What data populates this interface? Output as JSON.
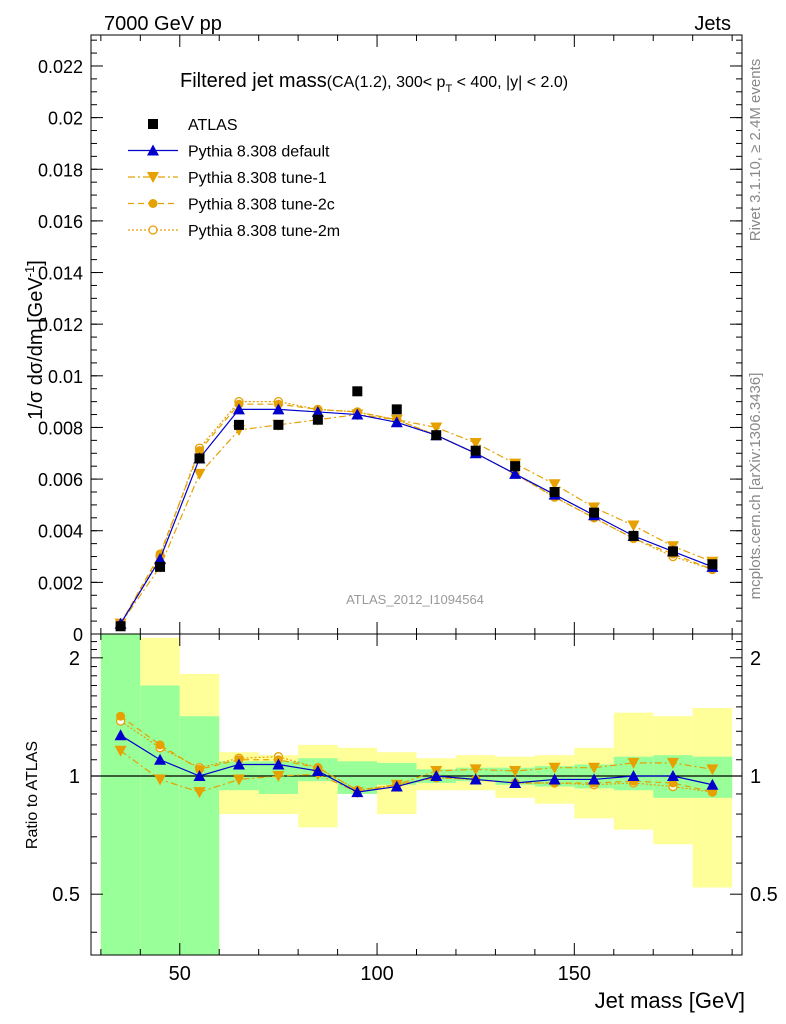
{
  "header": {
    "left": "7000 GeV pp",
    "right": "Jets"
  },
  "title": {
    "main": "Filtered jet mass",
    "sub": "(CA(1.2), 300< p",
    "sub_pt": "T",
    "sub_end": " < 400, |y| < 2.0)"
  },
  "side_labels": {
    "rivet": "Rivet 3.1.10, ≥ 2.4M events",
    "mcplots": "mcplots.cern.ch [arXiv:1306.3436]"
  },
  "watermark": "ATLAS_2012_I1094564",
  "colors": {
    "atlas": "#000000",
    "default": "#0000cc",
    "tune": "#e6a000",
    "band_inner": "#99ff99",
    "band_outer": "#ffff99"
  },
  "chart_data": [
    {
      "type": "line",
      "panel": "main",
      "ylabel": "1/σ dσ/dm [GeV",
      "ylabel_sup": "-1",
      "ylabel_end": "]",
      "xlim": [
        27.5,
        192.5
      ],
      "ylim": [
        0,
        0.0232
      ],
      "yticks": [
        0,
        0.002,
        0.004,
        0.006,
        0.008,
        0.01,
        0.012,
        0.014,
        0.016,
        0.018,
        0.02,
        0.022
      ],
      "ytick_labels": [
        "0",
        "0.002",
        "0.004",
        "0.006",
        "0.008",
        "0.01",
        "0.012",
        "0.014",
        "0.016",
        "0.018",
        "0.02",
        "0.022"
      ],
      "x": [
        35,
        45,
        55,
        65,
        75,
        85,
        95,
        105,
        115,
        125,
        135,
        145,
        155,
        165,
        175,
        185
      ],
      "series": [
        {
          "name": "ATLAS",
          "style": "data",
          "values": [
            0.0003,
            0.0026,
            0.0068,
            0.0081,
            0.0081,
            0.0083,
            0.0094,
            0.0087,
            0.0077,
            0.0071,
            0.0065,
            0.0055,
            0.0047,
            0.0038,
            0.0032,
            0.0027
          ]
        },
        {
          "name": "Pythia 8.308 default",
          "style": "default",
          "values": [
            0.0004,
            0.0029,
            0.0068,
            0.0087,
            0.0087,
            0.0086,
            0.0085,
            0.0082,
            0.0077,
            0.007,
            0.0062,
            0.0054,
            0.0046,
            0.0038,
            0.0032,
            0.0026
          ]
        },
        {
          "name": "Pythia 8.308 tune-1",
          "style": "tune1",
          "values": [
            0.0004,
            0.0026,
            0.0062,
            0.0079,
            0.0081,
            0.0083,
            0.0085,
            0.0083,
            0.008,
            0.0074,
            0.0066,
            0.0058,
            0.0049,
            0.0042,
            0.0034,
            0.0028
          ]
        },
        {
          "name": "Pythia 8.308 tune-2c",
          "style": "tune2c",
          "values": [
            0.0004,
            0.0031,
            0.0071,
            0.0089,
            0.0089,
            0.0087,
            0.0086,
            0.0083,
            0.0077,
            0.007,
            0.0062,
            0.0053,
            0.0045,
            0.0037,
            0.0031,
            0.0025
          ]
        },
        {
          "name": "Pythia 8.308 tune-2m",
          "style": "tune2m",
          "values": [
            0.0004,
            0.003,
            0.0072,
            0.009,
            0.009,
            0.0087,
            0.0086,
            0.0083,
            0.0077,
            0.007,
            0.0062,
            0.0053,
            0.0045,
            0.0037,
            0.003,
            0.0025
          ]
        }
      ]
    },
    {
      "type": "line",
      "panel": "ratio",
      "xlabel": "Jet mass [GeV]",
      "ylabel": "Ratio to ATLAS",
      "xlim": [
        27.5,
        192.5
      ],
      "ylim": [
        0.35,
        2.3
      ],
      "scale": "log",
      "xticks": [
        50,
        100,
        150
      ],
      "xtick_labels": [
        "50",
        "100",
        "150"
      ],
      "yticks": [
        0.5,
        1,
        2
      ],
      "ytick_labels": [
        "0.5",
        "1",
        "2"
      ],
      "reference": 1,
      "band_edges": [
        30,
        40,
        50,
        60,
        70,
        80,
        90,
        100,
        110,
        120,
        130,
        140,
        150,
        160,
        170,
        180,
        190
      ],
      "inner_band": {
        "lo": [
          0.35,
          0.35,
          0.35,
          0.92,
          0.9,
          0.97,
          0.9,
          0.95,
          0.96,
          0.97,
          0.95,
          0.94,
          0.93,
          0.92,
          0.88,
          0.88
        ],
        "hi": [
          2.3,
          1.7,
          1.42,
          1.09,
          1.09,
          1.11,
          1.09,
          1.08,
          1.04,
          1.05,
          1.05,
          1.06,
          1.07,
          1.12,
          1.13,
          1.12
        ]
      },
      "outer_band": {
        "lo": [
          0.35,
          0.35,
          0.35,
          0.8,
          0.8,
          0.74,
          0.94,
          0.8,
          0.92,
          0.92,
          0.88,
          0.85,
          0.78,
          0.73,
          0.67,
          0.52
        ],
        "hi": [
          2.3,
          2.25,
          1.82,
          1.15,
          1.13,
          1.2,
          1.18,
          1.15,
          1.11,
          1.13,
          1.12,
          1.13,
          1.18,
          1.45,
          1.42,
          1.49
        ]
      },
      "x": [
        35,
        45,
        55,
        65,
        75,
        85,
        95,
        105,
        115,
        125,
        135,
        145,
        155,
        165,
        175,
        185
      ],
      "series": [
        {
          "name": "Pythia 8.308 default",
          "style": "default",
          "values": [
            1.27,
            1.1,
            1.0,
            1.07,
            1.07,
            1.03,
            0.91,
            0.94,
            1.0,
            0.98,
            0.96,
            0.98,
            0.98,
            1.0,
            1.0,
            0.95
          ]
        },
        {
          "name": "Pythia 8.308 tune-1",
          "style": "tune1",
          "values": [
            1.16,
            0.98,
            0.91,
            0.98,
            1.0,
            1.01,
            0.91,
            0.95,
            1.03,
            1.04,
            1.03,
            1.05,
            1.05,
            1.08,
            1.08,
            1.04
          ]
        },
        {
          "name": "Pythia 8.308 tune-2c",
          "style": "tune2c",
          "values": [
            1.42,
            1.2,
            1.04,
            1.1,
            1.1,
            1.05,
            0.92,
            0.95,
            0.99,
            0.98,
            0.96,
            0.96,
            0.96,
            0.97,
            0.96,
            0.91
          ]
        },
        {
          "name": "Pythia 8.308 tune-2m",
          "style": "tune2m",
          "values": [
            1.38,
            1.18,
            1.05,
            1.11,
            1.12,
            1.05,
            0.92,
            0.95,
            0.99,
            0.98,
            0.96,
            0.96,
            0.95,
            0.96,
            0.94,
            0.91
          ]
        }
      ]
    }
  ]
}
